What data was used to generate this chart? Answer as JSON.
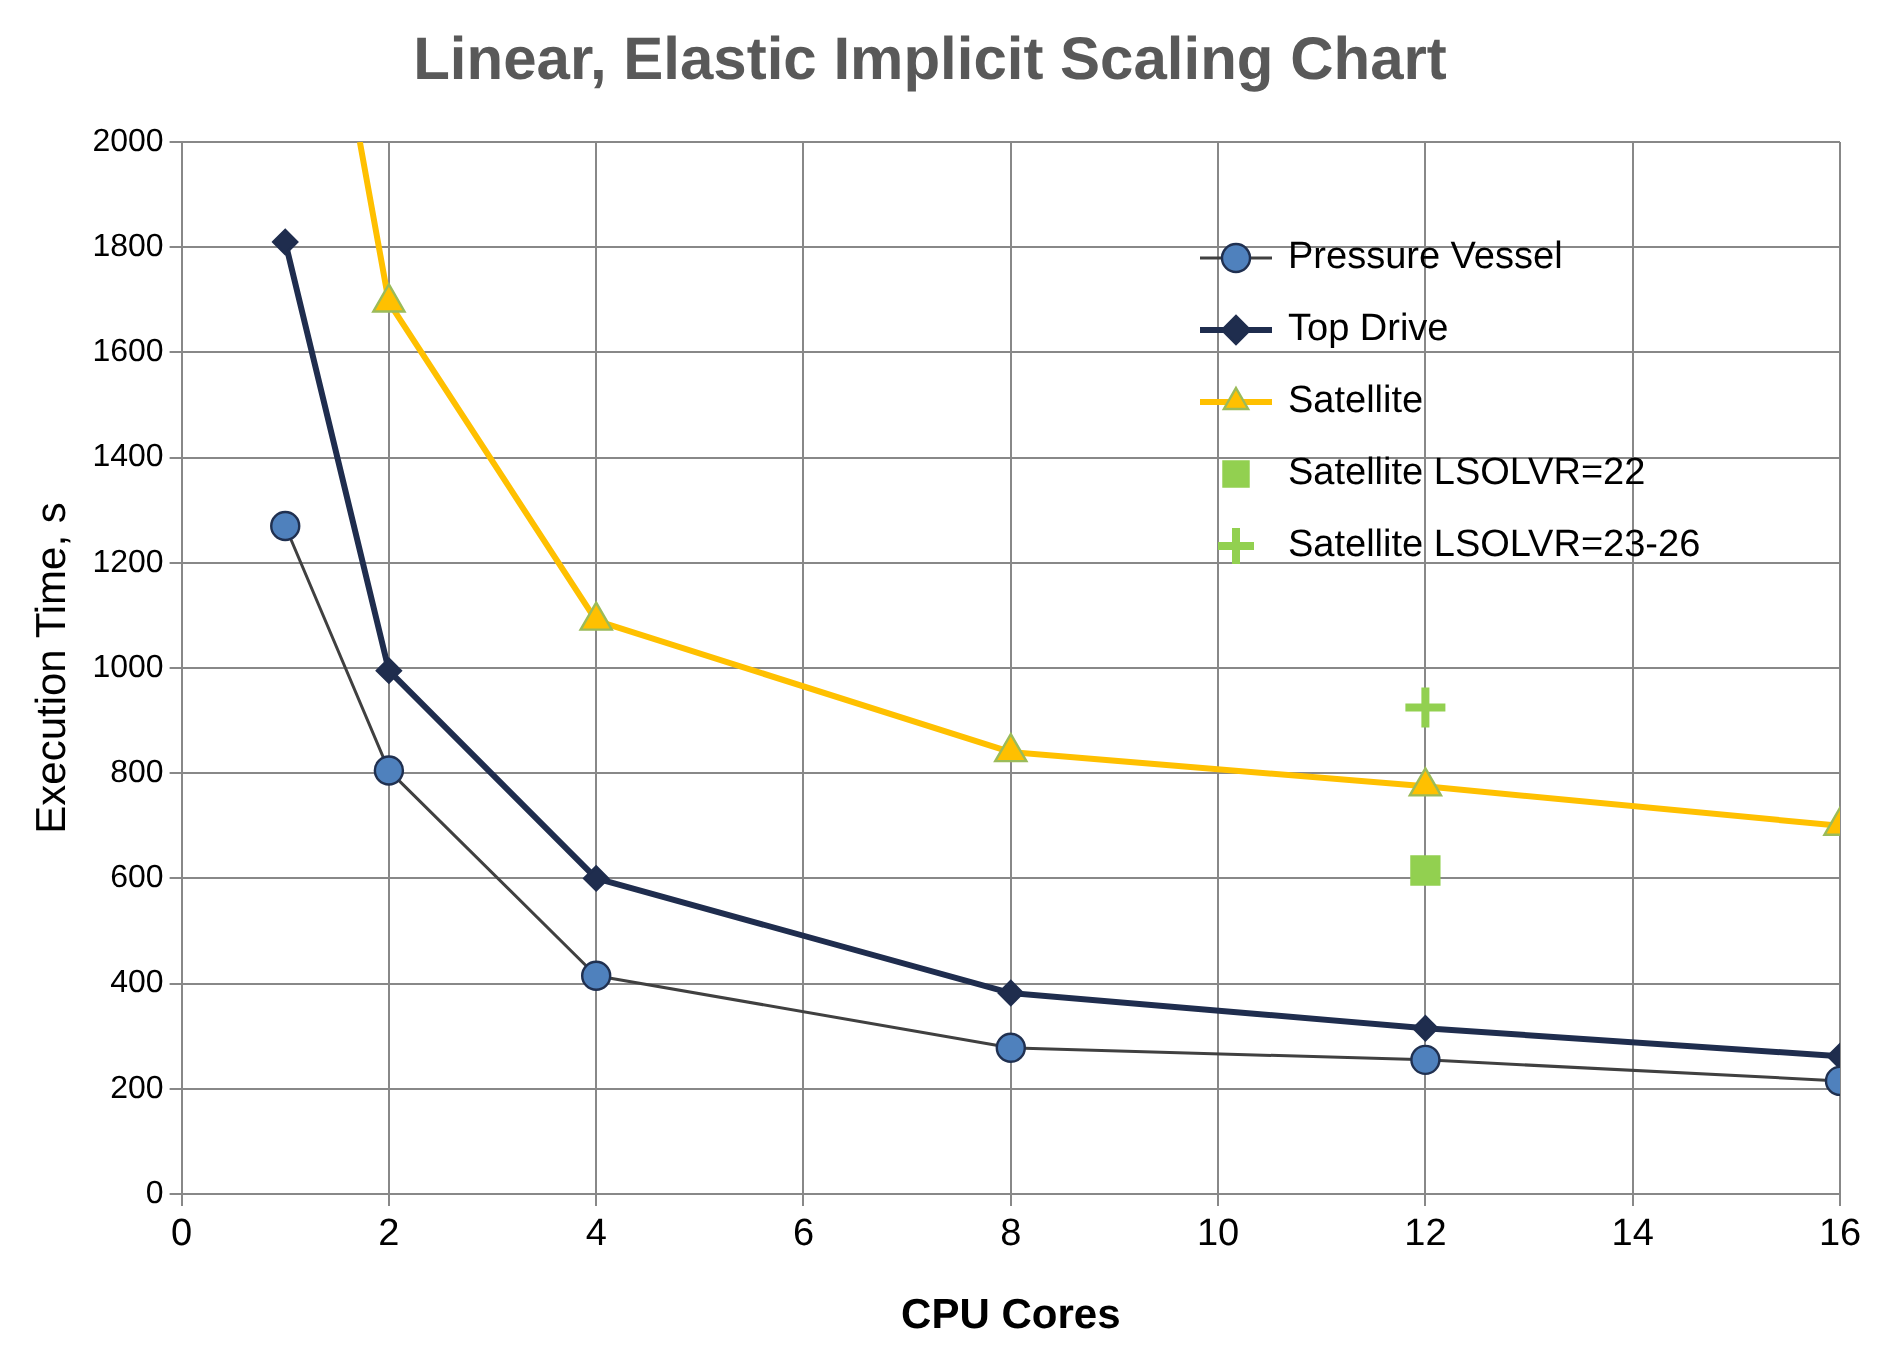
{
  "chart_data": {
    "type": "line",
    "title": "Linear, Elastic Implicit Scaling Chart",
    "xlabel": "CPU Cores",
    "ylabel": "Execution Time, s",
    "xlim": [
      0,
      16
    ],
    "xticks": [
      0,
      2,
      4,
      6,
      8,
      10,
      12,
      14,
      16
    ],
    "ylim": [
      0,
      2000
    ],
    "yticks": [
      0,
      200,
      400,
      600,
      800,
      1000,
      1200,
      1400,
      1600,
      1800,
      2000
    ],
    "grid": true,
    "legend": "top right",
    "series": [
      {
        "name": "Pressure Vessel",
        "color": "#4f81bd",
        "marker": "circle",
        "x": [
          1,
          2,
          4,
          8,
          12,
          16
        ],
        "values": [
          1270,
          805,
          415,
          278,
          255,
          215
        ]
      },
      {
        "name": "Top Drive",
        "color": "#1f2d4e",
        "marker": "diamond",
        "x": [
          1,
          2,
          4,
          8,
          12,
          16
        ],
        "values": [
          1810,
          995,
          600,
          382,
          315,
          262
        ]
      },
      {
        "name": "Satellite",
        "color": "#ffc000",
        "marker": "triangle",
        "x": [
          1.72,
          2,
          4,
          8,
          12,
          16
        ],
        "values": [
          2000,
          1695,
          1090,
          840,
          775,
          700
        ]
      },
      {
        "name": "Satellite LSOLVR=22",
        "type": "scatter",
        "color": "#92d050",
        "marker": "square",
        "x": [
          12
        ],
        "values": [
          615
        ]
      },
      {
        "name": "Satellite LSOLVR=23-26",
        "type": "scatter",
        "color": "#92d050",
        "marker": "cross",
        "x": [
          12
        ],
        "values": [
          925
        ]
      }
    ]
  }
}
